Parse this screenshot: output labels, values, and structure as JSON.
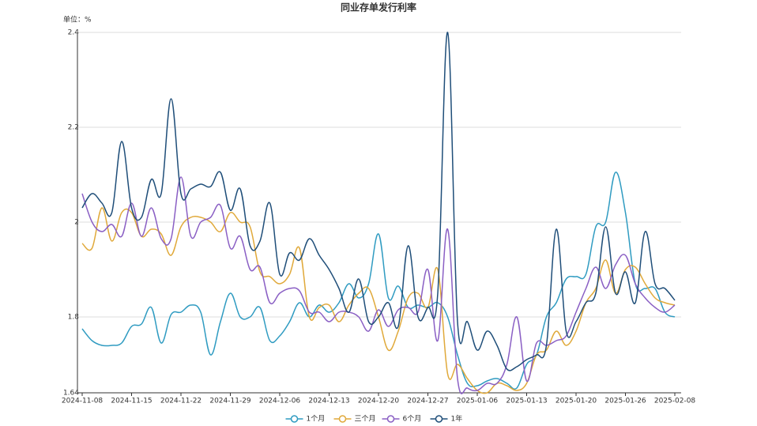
{
  "chart_data": {
    "type": "line",
    "title": "同业存单发行利率",
    "y_unit_label": "单位：%",
    "categories": [
      "2024-11-08",
      null,
      null,
      null,
      null,
      "2024-11-15",
      null,
      null,
      null,
      null,
      "2024-11-22",
      null,
      null,
      null,
      null,
      "2024-11-29",
      null,
      null,
      null,
      null,
      "2024-12-06",
      null,
      null,
      null,
      null,
      "2024-12-13",
      null,
      null,
      null,
      null,
      "2024-12-20",
      null,
      null,
      null,
      null,
      "2024-12-27",
      null,
      null,
      null,
      null,
      "2025-01-06",
      null,
      null,
      null,
      null,
      "2025-01-13",
      null,
      null,
      null,
      null,
      "2025-01-20",
      null,
      null,
      null,
      null,
      "2025-01-26",
      null,
      null,
      null,
      null,
      "2025-02-08"
    ],
    "ylim": [
      1.64,
      2.4
    ],
    "yticks": [
      1.64,
      1.8,
      2,
      2.2,
      2.4
    ],
    "grid": true,
    "legend": "bottom",
    "series": [
      {
        "name": "1个月",
        "color": "#2f9bc1",
        "values": [
          1.775,
          1.75,
          1.74,
          1.74,
          1.745,
          1.78,
          1.785,
          1.82,
          1.745,
          1.805,
          1.81,
          1.825,
          1.81,
          1.72,
          1.79,
          1.85,
          1.8,
          1.8,
          1.82,
          1.75,
          1.76,
          1.79,
          1.83,
          1.8,
          1.825,
          1.81,
          1.83,
          1.87,
          1.84,
          1.87,
          1.975,
          1.84,
          1.865,
          1.82,
          1.825,
          1.82,
          1.83,
          1.8,
          1.72,
          1.66,
          1.655,
          1.665,
          1.67,
          1.66,
          1.65,
          1.7,
          1.72,
          1.8,
          1.83,
          1.88,
          1.885,
          1.89,
          1.99,
          2.0,
          2.105,
          2.02,
          1.87,
          1.86,
          1.86,
          1.81,
          1.8
        ]
      },
      {
        "name": "三个月",
        "color": "#e0a93a",
        "values": [
          1.955,
          1.945,
          2.03,
          1.96,
          2.02,
          2.02,
          1.97,
          1.985,
          1.975,
          1.93,
          1.99,
          2.01,
          2.01,
          2.0,
          1.98,
          2.02,
          2.0,
          1.99,
          1.895,
          1.885,
          1.87,
          1.89,
          1.945,
          1.8,
          1.82,
          1.825,
          1.79,
          1.825,
          1.85,
          1.86,
          1.8,
          1.73,
          1.77,
          1.84,
          1.85,
          1.82,
          1.9,
          1.68,
          1.7,
          1.67,
          1.645,
          1.64,
          1.66,
          1.655,
          1.645,
          1.66,
          1.72,
          1.73,
          1.77,
          1.74,
          1.77,
          1.83,
          1.86,
          1.92,
          1.85,
          1.9,
          1.905,
          1.87,
          1.84,
          1.83,
          1.825
        ]
      },
      {
        "name": "6个月",
        "color": "#8a5fc4",
        "values": [
          2.06,
          2.0,
          1.98,
          1.995,
          1.97,
          2.04,
          1.97,
          2.03,
          1.965,
          1.965,
          2.095,
          1.97,
          2.0,
          2.01,
          2.035,
          1.945,
          1.97,
          1.9,
          1.905,
          1.83,
          1.85,
          1.86,
          1.855,
          1.81,
          1.81,
          1.79,
          1.81,
          1.81,
          1.8,
          1.77,
          1.815,
          1.78,
          1.815,
          1.82,
          1.81,
          1.9,
          1.75,
          1.985,
          1.67,
          1.65,
          1.645,
          1.66,
          1.66,
          1.7,
          1.8,
          1.665,
          1.745,
          1.74,
          1.75,
          1.76,
          1.81,
          1.86,
          1.905,
          1.86,
          1.91,
          1.93,
          1.87,
          1.84,
          1.82,
          1.81,
          1.825
        ]
      },
      {
        "name": "1年",
        "color": "#1f4e79",
        "values": [
          2.03,
          2.06,
          2.04,
          2.02,
          2.17,
          2.03,
          2.01,
          2.09,
          2.06,
          2.26,
          2.06,
          2.07,
          2.08,
          2.075,
          2.105,
          2.025,
          2.07,
          1.95,
          1.96,
          2.04,
          1.89,
          1.935,
          1.92,
          1.965,
          1.93,
          1.9,
          1.86,
          1.81,
          1.88,
          1.79,
          1.8,
          1.83,
          1.78,
          1.95,
          1.8,
          1.82,
          1.85,
          2.4,
          1.79,
          1.79,
          1.73,
          1.77,
          1.74,
          1.69,
          1.695,
          1.71,
          1.72,
          1.74,
          1.985,
          1.77,
          1.79,
          1.83,
          1.85,
          1.99,
          1.85,
          1.895,
          1.83,
          1.98,
          1.87,
          1.86,
          1.835
        ]
      }
    ]
  }
}
